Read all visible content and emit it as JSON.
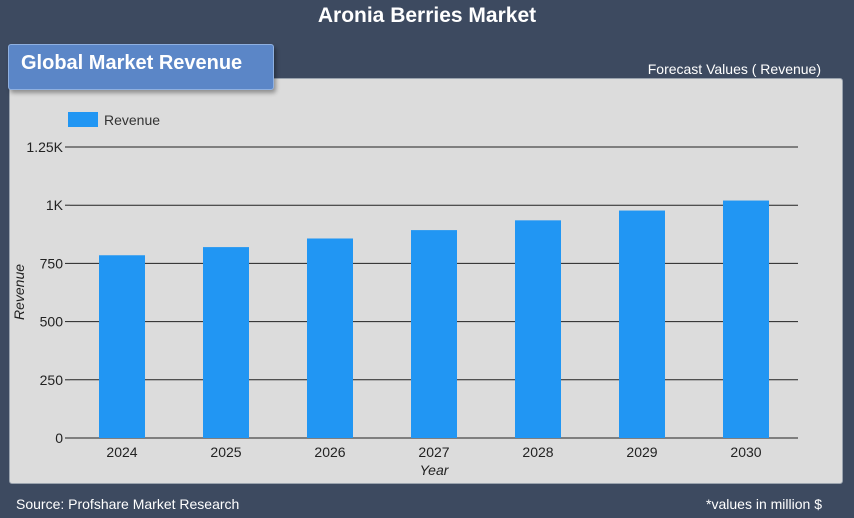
{
  "header": {
    "title": "Aronia Berries Market",
    "section_label": "Global Market Revenue",
    "forecast_label": "Forecast Values ( Revenue)"
  },
  "footer": {
    "source": "Source: Profshare Market Research",
    "note": "*values in million $"
  },
  "colors": {
    "background": "#3d4a60",
    "panel": "#dcdcdc",
    "tab": "#5b86c7",
    "bar": "#2196f3"
  },
  "chart_data": {
    "type": "bar",
    "categories": [
      "2024",
      "2025",
      "2026",
      "2027",
      "2028",
      "2029",
      "2030"
    ],
    "series": [
      {
        "name": "Revenue",
        "values": [
          785,
          820,
          857,
          893,
          935,
          977,
          1020
        ]
      }
    ],
    "ylabel": "Revenue",
    "xlabel": "Year",
    "ylim": [
      0,
      1250
    ],
    "yticks": [
      0,
      250,
      500,
      750,
      1000,
      1250
    ],
    "ytick_labels": [
      "0",
      "250",
      "500",
      "750",
      "1K",
      "1.25K"
    ],
    "grid": true,
    "legend": "top-left"
  }
}
